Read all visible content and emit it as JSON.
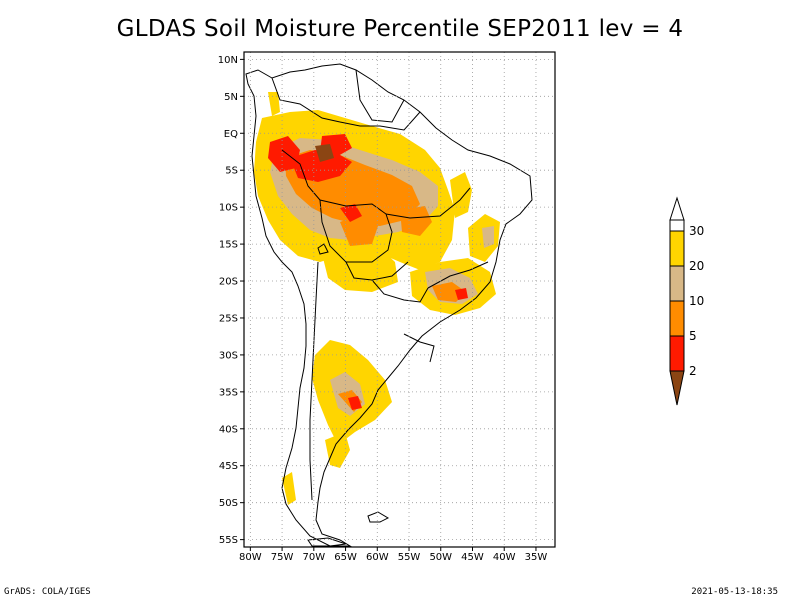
{
  "title": "GLDAS Soil Moisture Percentile SEP2011 lev = 4",
  "map": {
    "region": "South America",
    "lon_range": [
      -81,
      -32
    ],
    "lat_range": [
      -56,
      11
    ],
    "x_ticks": [
      "80W",
      "75W",
      "70W",
      "65W",
      "60W",
      "55W",
      "50W",
      "45W",
      "40W",
      "35W"
    ],
    "y_ticks": [
      "10N",
      "5N",
      "EQ",
      "5S",
      "10S",
      "15S",
      "20S",
      "25S",
      "30S",
      "35S",
      "40S",
      "45S",
      "50S",
      "55S"
    ],
    "grid": "dotted",
    "outline_color": "#000000"
  },
  "colorbar": {
    "orientation": "vertical",
    "labels": [
      "30",
      "20",
      "10",
      "5",
      "2"
    ],
    "colors": {
      "above_30": "#ffffff",
      "c20_30": "#ffd500",
      "c10_20": "#d8b887",
      "c5_10": "#ff8c00",
      "c2_5": "#ff1a00",
      "below_2": "#8b4513"
    }
  },
  "footer": {
    "left": "GrADS: COLA/IGES",
    "right": "2021-05-13-18:35"
  }
}
